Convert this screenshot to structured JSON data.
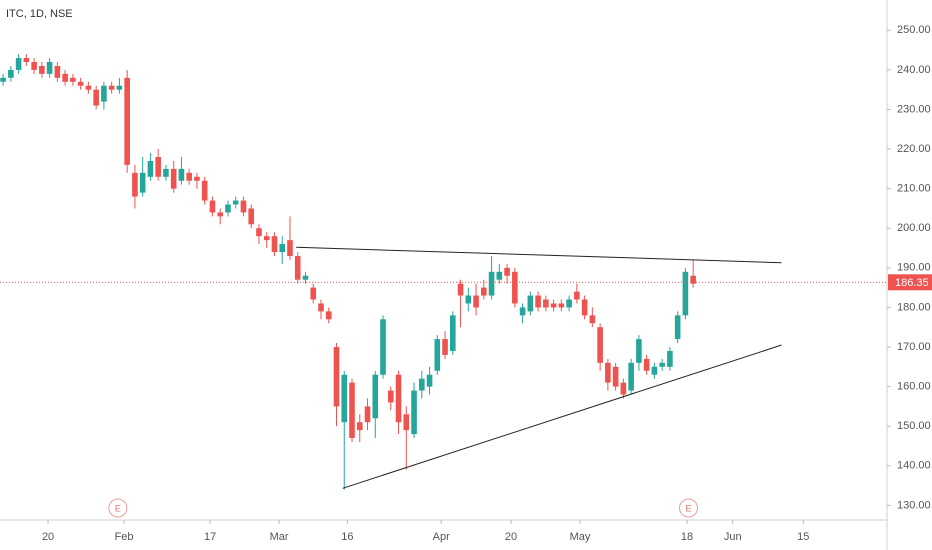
{
  "chart_data": {
    "type": "candlestick",
    "title": "ITC, 1D, NSE",
    "up_color": "#26a69a",
    "down_color": "#ef5350",
    "open": [
      237,
      238,
      240,
      243,
      242,
      241,
      239,
      241,
      239,
      238,
      237,
      236,
      235,
      232,
      236,
      235,
      238,
      214,
      209,
      213,
      218,
      213,
      215,
      212,
      214,
      213,
      212,
      207,
      204,
      204,
      206,
      207,
      205,
      200,
      198,
      198,
      194,
      197,
      193,
      187,
      185,
      181,
      179,
      170,
      151,
      161,
      151,
      155,
      152,
      163,
      159,
      163,
      153,
      148,
      159,
      160,
      164,
      172,
      169,
      186,
      181,
      183,
      185,
      183,
      187,
      190,
      189,
      178,
      179,
      183,
      182,
      181,
      181,
      180,
      184,
      182,
      178,
      175,
      166,
      165,
      161,
      159,
      166,
      167,
      163,
      165,
      165,
      172,
      178,
      188
    ],
    "high": [
      239,
      241,
      244,
      244,
      243,
      242,
      243,
      242,
      240,
      239,
      238,
      237,
      236,
      237,
      237,
      238,
      240,
      216,
      218,
      219,
      220,
      216,
      217,
      218,
      215,
      214,
      213,
      208,
      205,
      207,
      208,
      208,
      206,
      201,
      199,
      199,
      198,
      203,
      194,
      189,
      186,
      182,
      180,
      171,
      164,
      162,
      153,
      157,
      164,
      178,
      160,
      164,
      155,
      161,
      164,
      165,
      173,
      174,
      179,
      187,
      185,
      186,
      187,
      193,
      191,
      191,
      190,
      181,
      184,
      184,
      183,
      182,
      182,
      183,
      186,
      183,
      180,
      176,
      167,
      166,
      162,
      167,
      173,
      168,
      166,
      167,
      170,
      179,
      190,
      192
    ],
    "low": [
      236,
      237,
      239,
      241,
      239,
      238,
      238,
      237,
      236,
      236,
      235,
      234,
      230,
      230,
      234,
      234,
      214,
      205,
      208,
      212,
      212,
      212,
      209,
      211,
      211,
      210,
      206,
      203,
      201,
      203,
      205,
      203,
      200,
      196,
      195,
      193,
      191,
      192,
      186,
      186,
      181,
      177,
      176,
      150,
      134,
      146,
      146,
      149,
      147,
      162,
      154,
      148,
      139,
      147,
      157,
      158,
      163,
      167,
      168,
      175,
      179,
      178,
      182,
      182,
      186,
      186,
      180,
      176,
      178,
      179,
      179,
      179,
      179,
      179,
      181,
      177,
      175,
      164,
      159,
      159,
      157,
      158,
      164,
      163,
      162,
      164,
      164,
      171,
      177,
      185
    ],
    "close": [
      238,
      240,
      243,
      242,
      240,
      239,
      242,
      238,
      237,
      237,
      236,
      235,
      231,
      236,
      235,
      236,
      216,
      208,
      214,
      217,
      213,
      215,
      210,
      215,
      212,
      212,
      207,
      204,
      203,
      206,
      207,
      204,
      201,
      198,
      197,
      194,
      196,
      193,
      187,
      188,
      182,
      179,
      177,
      155,
      163,
      147,
      149,
      151,
      163,
      177,
      156,
      151,
      149,
      159,
      162,
      163,
      172,
      168,
      178,
      183,
      183,
      180,
      183,
      189,
      189,
      188,
      181,
      180,
      183,
      180,
      180,
      180,
      180,
      182,
      182,
      178,
      176,
      166,
      161,
      160,
      158,
      166,
      172,
      164,
      165,
      166,
      169,
      178,
      189,
      186
    ],
    "xlim": [
      -0.4,
      114
    ],
    "xticks": [
      {
        "value": 5.8,
        "label": "20"
      },
      {
        "value": 15.6,
        "label": "Feb"
      },
      {
        "value": 26.7,
        "label": "17"
      },
      {
        "value": 35.6,
        "label": "Mar"
      },
      {
        "value": 44.4,
        "label": "16"
      },
      {
        "value": 56.5,
        "label": "Apr"
      },
      {
        "value": 65.5,
        "label": "20"
      },
      {
        "value": 74.4,
        "label": "May"
      },
      {
        "value": 88.2,
        "label": "18"
      },
      {
        "value": 94.1,
        "label": "Jun"
      },
      {
        "value": 103.2,
        "label": "15"
      }
    ],
    "ylim": [
      126.3,
      257.66
    ],
    "yticks": [
      {
        "value": 130,
        "label": "130.00"
      },
      {
        "value": 140,
        "label": "140.00"
      },
      {
        "value": 150,
        "label": "150.00"
      },
      {
        "value": 160,
        "label": "160.00"
      },
      {
        "value": 170,
        "label": "170.00"
      },
      {
        "value": 180,
        "label": "180.00"
      },
      {
        "value": 190,
        "label": "190.00"
      },
      {
        "value": 200,
        "label": "200.00"
      },
      {
        "value": 210,
        "label": "210.00"
      },
      {
        "value": 220,
        "label": "220.00"
      },
      {
        "value": 230,
        "label": "230.00"
      },
      {
        "value": 240,
        "label": "240.00"
      },
      {
        "value": 250,
        "label": "250.00"
      }
    ],
    "last_price": 186.35,
    "trendlines": [
      {
        "x": [
          37.8,
          100.4
        ],
        "y": [
          195.2,
          191.3
        ]
      },
      {
        "x": [
          43.8,
          100.4
        ],
        "y": [
          134.3,
          170.5
        ]
      }
    ],
    "events": [
      {
        "x": 14.8,
        "label": "E"
      },
      {
        "x": 88.4,
        "label": "E"
      }
    ]
  }
}
